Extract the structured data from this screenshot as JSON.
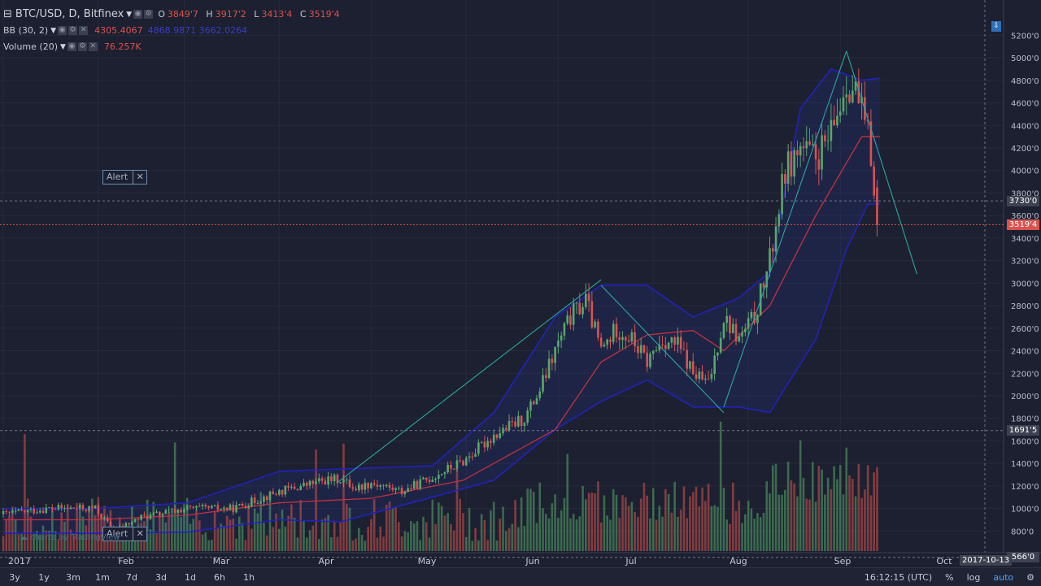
{
  "header": {
    "symbol_title": "BTC/USD, D, Bitfinex",
    "ohlc": [
      {
        "k": "O",
        "v": "3849'7"
      },
      {
        "k": "H",
        "v": "3917'2"
      },
      {
        "k": "L",
        "v": "3413'4"
      },
      {
        "k": "C",
        "v": "3519'4"
      }
    ],
    "bb_label": "BB (30, 2)",
    "bb_value": "4305.4067",
    "bb_value2": "4868.9871 3662.0264",
    "volume_label": "Volume (20)",
    "volume_value": "76.257K"
  },
  "alerts": {
    "top_label": "Alert",
    "bottom_label": "Alert"
  },
  "watermark": "charts by TradingView",
  "price_tags": [
    {
      "value": "3730'0",
      "color": "#3d4252"
    },
    {
      "value": "3519'4",
      "color": "#d9534f"
    },
    {
      "value": "1691'5",
      "color": "#3d4252"
    },
    {
      "value": "566'0",
      "color": "#3d4252"
    }
  ],
  "date_badge": "2017-10-13",
  "bottom_bar": {
    "ranges": [
      "3y",
      "1y",
      "3m",
      "1m",
      "7d",
      "3d",
      "1d",
      "6h",
      "1h"
    ],
    "time": "16:12:15 (UTC)",
    "pct": "%",
    "log": "log",
    "auto": "auto"
  },
  "colors": {
    "up": "#58a86a",
    "down": "#d9534f",
    "bb_band": "#2222bb",
    "bb_mid": "#c0323f",
    "trend": "#2aa7a0"
  },
  "chart_data": {
    "type": "candlestick",
    "title": "BTC/USD, D, Bitfinex",
    "x_ticks": [
      "2017",
      "Feb",
      "Mar",
      "Apr",
      "May",
      "Jun",
      "Jul",
      "Aug",
      "Sep",
      "Oct"
    ],
    "y_ticks": [
      "5200'0",
      "5000'0",
      "4800'0",
      "4600'0",
      "4400'0",
      "4200'0",
      "4000'0",
      "3800'0",
      "3600'0",
      "3400'0",
      "3200'0",
      "3000'0",
      "2800'0",
      "2600'0",
      "2400'0",
      "2200'0",
      "2000'0",
      "1800'0",
      "1600'0",
      "1400'0",
      "1200'0",
      "1000'0",
      "800'0"
    ],
    "ylim": [
      500,
      5300
    ],
    "days": 286,
    "close_path": [
      [
        0,
        950
      ],
      [
        15,
        1000
      ],
      [
        30,
        1000
      ],
      [
        36,
        800
      ],
      [
        45,
        920
      ],
      [
        60,
        1000
      ],
      [
        75,
        1000
      ],
      [
        90,
        1150
      ],
      [
        105,
        1250
      ],
      [
        110,
        1260
      ],
      [
        115,
        1180
      ],
      [
        120,
        1230
      ],
      [
        130,
        1150
      ],
      [
        140,
        1280
      ],
      [
        150,
        1420
      ],
      [
        160,
        1650
      ],
      [
        170,
        1800
      ],
      [
        175,
        2050
      ],
      [
        180,
        2400
      ],
      [
        185,
        2700
      ],
      [
        190,
        2850
      ],
      [
        195,
        2400
      ],
      [
        200,
        2600
      ],
      [
        205,
        2500
      ],
      [
        210,
        2300
      ],
      [
        215,
        2500
      ],
      [
        220,
        2450
      ],
      [
        225,
        2200
      ],
      [
        230,
        2100
      ],
      [
        235,
        2700
      ],
      [
        240,
        2500
      ],
      [
        245,
        2700
      ],
      [
        250,
        3200
      ],
      [
        255,
        4000
      ],
      [
        260,
        4200
      ],
      [
        265,
        4100
      ],
      [
        270,
        4300
      ],
      [
        275,
        4800
      ],
      [
        278,
        4700
      ],
      [
        282,
        4300
      ],
      [
        286,
        3519
      ]
    ],
    "volume_profile": "daily volume bars, scaled to the lower pane",
    "bb_mid_path": [
      [
        0,
        900
      ],
      [
        30,
        900
      ],
      [
        60,
        940
      ],
      [
        90,
        1050
      ],
      [
        120,
        1090
      ],
      [
        150,
        1250
      ],
      [
        180,
        1700
      ],
      [
        195,
        2300
      ],
      [
        210,
        2540
      ],
      [
        225,
        2580
      ],
      [
        235,
        2400
      ],
      [
        250,
        2800
      ],
      [
        265,
        3600
      ],
      [
        280,
        4300
      ],
      [
        286,
        4300
      ]
    ],
    "bb_upper_path": [
      [
        0,
        1000
      ],
      [
        30,
        1000
      ],
      [
        60,
        1050
      ],
      [
        90,
        1330
      ],
      [
        110,
        1350
      ],
      [
        140,
        1380
      ],
      [
        160,
        1850
      ],
      [
        180,
        2700
      ],
      [
        195,
        2980
      ],
      [
        210,
        2980
      ],
      [
        225,
        2700
      ],
      [
        240,
        2870
      ],
      [
        250,
        3100
      ],
      [
        260,
        4550
      ],
      [
        270,
        4900
      ],
      [
        280,
        4800
      ],
      [
        286,
        4820
      ]
    ],
    "bb_lower_path": [
      [
        0,
        780
      ],
      [
        30,
        780
      ],
      [
        60,
        790
      ],
      [
        90,
        900
      ],
      [
        110,
        880
      ],
      [
        140,
        1100
      ],
      [
        160,
        1250
      ],
      [
        180,
        1700
      ],
      [
        195,
        1950
      ],
      [
        210,
        2140
      ],
      [
        225,
        1900
      ],
      [
        240,
        1900
      ],
      [
        250,
        1850
      ],
      [
        265,
        2500
      ],
      [
        275,
        3300
      ],
      [
        282,
        3700
      ],
      [
        286,
        3700
      ]
    ],
    "trendlines": [
      [
        [
          109,
          1230
        ],
        [
          195,
          3030
        ]
      ],
      [
        [
          195,
          2980
        ],
        [
          235,
          1850
        ]
      ],
      [
        [
          235,
          1900
        ],
        [
          275,
          5060
        ]
      ],
      [
        [
          275,
          5060
        ],
        [
          298,
          3080
        ]
      ]
    ],
    "horizontal_levels": [
      3730,
      3519.4,
      1691.5,
      566
    ]
  }
}
